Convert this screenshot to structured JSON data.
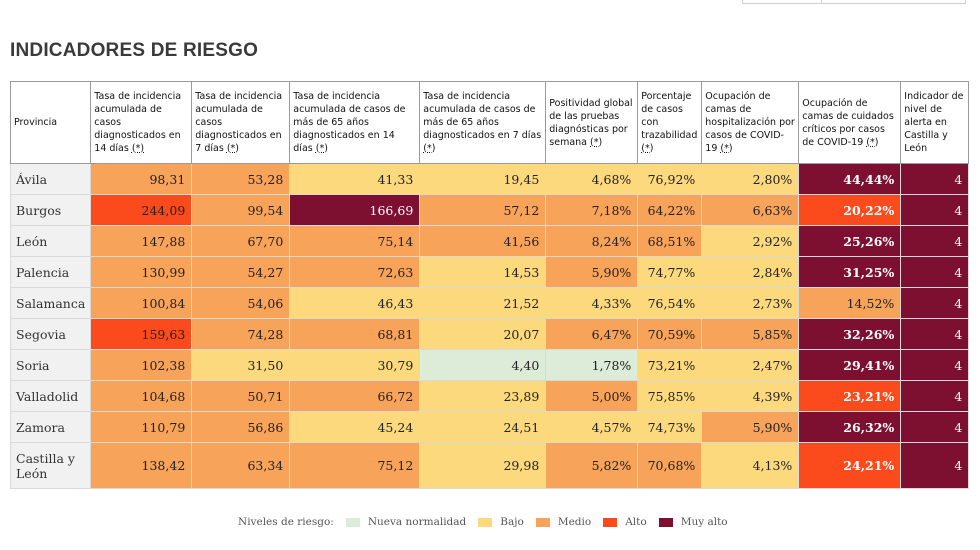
{
  "title": "INDICADORES DE RIESGO",
  "colors": {
    "nueva": "#dcecd9",
    "bajo": "#fcd97c",
    "medio": "#f8a35a",
    "alto": "#fb4a1c",
    "muy_alto": "#7d1030",
    "province_bg": "#f1f1f1"
  },
  "headers": [
    {
      "text": "Provincia",
      "ast": ""
    },
    {
      "text": "Tasa de incidencia acumulada de casos diagnosticados en 14 días ",
      "ast": "(*)"
    },
    {
      "text": "Tasa de incidencia acumulada de casos diagnosticados en 7 días ",
      "ast": "(*)"
    },
    {
      "text": "Tasa de incidencia acumulada de casos de más de 65 años diagnosticados en 14 días ",
      "ast": "(*)"
    },
    {
      "text": "Tasa de incidencia acumulada de casos de más de 65 años diagnosticados en 7 días ",
      "ast": "(*)"
    },
    {
      "text": "Positividad global de las pruebas diagnósticas por semana ",
      "ast": "(*)"
    },
    {
      "text": "Porcentaje de casos con trazabilidad ",
      "ast": "(*)"
    },
    {
      "text": "Ocupación de camas de hospitalización por casos de COVID-19 ",
      "ast": "(*)"
    },
    {
      "text": "Ocupación de camas de cuidados críticos por casos de COVID-19 ",
      "ast": "(*)"
    },
    {
      "text": "Indicador de nivel de alerta en Castilla y León",
      "ast": ""
    }
  ],
  "rows": [
    {
      "provincia": "Ávila",
      "values": [
        "98,31",
        "53,28",
        "41,33",
        "19,45",
        "4,68%",
        "76,92%",
        "2,80%",
        "44,44%",
        "4"
      ],
      "levels": [
        "medio",
        "medio",
        "bajo",
        "bajo",
        "bajo",
        "bajo",
        "bajo",
        "muy_alto",
        "muy_alto"
      ]
    },
    {
      "provincia": "Burgos",
      "values": [
        "244,09",
        "99,54",
        "166,69",
        "57,12",
        "7,18%",
        "64,22%",
        "6,63%",
        "20,22%",
        "4"
      ],
      "levels": [
        "alto",
        "medio",
        "muy_alto",
        "medio",
        "medio",
        "medio",
        "medio",
        "alto",
        "muy_alto"
      ]
    },
    {
      "provincia": "León",
      "values": [
        "147,88",
        "67,70",
        "75,14",
        "41,56",
        "8,24%",
        "68,51%",
        "2,92%",
        "25,26%",
        "4"
      ],
      "levels": [
        "medio",
        "medio",
        "medio",
        "medio",
        "medio",
        "medio",
        "bajo",
        "muy_alto",
        "muy_alto"
      ]
    },
    {
      "provincia": "Palencia",
      "values": [
        "130,99",
        "54,27",
        "72,63",
        "14,53",
        "5,90%",
        "74,77%",
        "2,84%",
        "31,25%",
        "4"
      ],
      "levels": [
        "medio",
        "medio",
        "medio",
        "bajo",
        "medio",
        "bajo",
        "bajo",
        "muy_alto",
        "muy_alto"
      ]
    },
    {
      "provincia": "Salamanca",
      "values": [
        "100,84",
        "54,06",
        "46,43",
        "21,52",
        "4,33%",
        "76,54%",
        "2,73%",
        "14,52%",
        "4"
      ],
      "levels": [
        "medio",
        "medio",
        "bajo",
        "bajo",
        "bajo",
        "bajo",
        "bajo",
        "medio",
        "muy_alto"
      ]
    },
    {
      "provincia": "Segovia",
      "values": [
        "159,63",
        "74,28",
        "68,81",
        "20,07",
        "6,47%",
        "70,59%",
        "5,85%",
        "32,26%",
        "4"
      ],
      "levels": [
        "alto",
        "medio",
        "medio",
        "bajo",
        "medio",
        "medio",
        "medio",
        "muy_alto",
        "muy_alto"
      ]
    },
    {
      "provincia": "Soria",
      "values": [
        "102,38",
        "31,50",
        "30,79",
        "4,40",
        "1,78%",
        "73,21%",
        "2,47%",
        "29,41%",
        "4"
      ],
      "levels": [
        "medio",
        "bajo",
        "bajo",
        "nueva",
        "nueva",
        "bajo",
        "bajo",
        "muy_alto",
        "muy_alto"
      ]
    },
    {
      "provincia": "Valladolid",
      "values": [
        "104,68",
        "50,71",
        "66,72",
        "23,89",
        "5,00%",
        "75,85%",
        "4,39%",
        "23,21%",
        "4"
      ],
      "levels": [
        "medio",
        "medio",
        "medio",
        "bajo",
        "medio",
        "bajo",
        "bajo",
        "alto",
        "muy_alto"
      ]
    },
    {
      "provincia": "Zamora",
      "values": [
        "110,79",
        "56,86",
        "45,24",
        "24,51",
        "4,57%",
        "74,73%",
        "5,90%",
        "26,32%",
        "4"
      ],
      "levels": [
        "medio",
        "medio",
        "bajo",
        "bajo",
        "bajo",
        "bajo",
        "medio",
        "muy_alto",
        "muy_alto"
      ]
    },
    {
      "provincia": "Castilla y León",
      "values": [
        "138,42",
        "63,34",
        "75,12",
        "29,98",
        "5,82%",
        "70,68%",
        "4,13%",
        "24,21%",
        "4"
      ],
      "levels": [
        "medio",
        "medio",
        "medio",
        "bajo",
        "medio",
        "medio",
        "bajo",
        "alto",
        "muy_alto"
      ]
    }
  ],
  "legend": {
    "title": "Niveles de riesgo:",
    "items": [
      {
        "key": "nueva",
        "label": "Nueva normalidad"
      },
      {
        "key": "bajo",
        "label": "Bajo"
      },
      {
        "key": "medio",
        "label": "Medio"
      },
      {
        "key": "alto",
        "label": "Alto"
      },
      {
        "key": "muy_alto",
        "label": "Muy alto"
      }
    ]
  }
}
